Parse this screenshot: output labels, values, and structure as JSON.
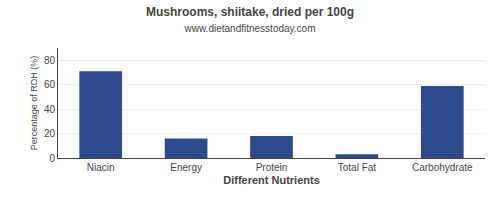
{
  "chart_data": {
    "type": "bar",
    "title": "Mushrooms, shiitake, dried per 100g",
    "subtitle": "www.dietandfitnesstoday.com",
    "xlabel": "Different Nutrients",
    "ylabel": "Percentage of RDH (%)",
    "categories": [
      "Niacin",
      "Energy",
      "Protein",
      "Total Fat",
      "Carbohydrate"
    ],
    "values": [
      71,
      16,
      18,
      3,
      59
    ],
    "color": "#2e4a8e",
    "ylim": [
      0,
      90
    ],
    "yticks": [
      0,
      20,
      40,
      60,
      80
    ],
    "grid": true
  }
}
